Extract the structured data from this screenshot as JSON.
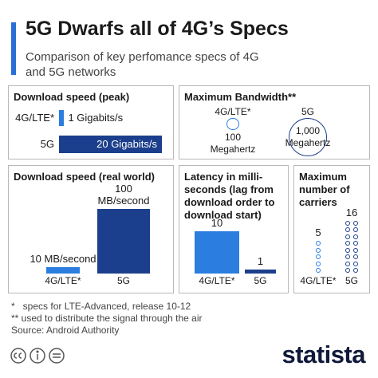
{
  "title": "5G Dwarfs all of 4G’s Specs",
  "subtitle": "Comparison of key perfomance specs of 4G and 5G networks",
  "chart_data": [
    {
      "type": "bar",
      "title": "Download speed (peak)",
      "categories": [
        "4G/LTE*",
        "5G"
      ],
      "values": [
        1,
        20
      ],
      "value_labels": [
        "1 Gigabits/s",
        "20 Gigabits/s"
      ],
      "colors": [
        "#2b7de0",
        "#1b3f8c"
      ]
    },
    {
      "type": "bubble",
      "title": "Maximum Bandwidth**",
      "categories": [
        "4G/LTE*",
        "5G"
      ],
      "values": [
        100,
        1000
      ],
      "value_labels": [
        "100 Megahertz",
        "1,000 Megahertz"
      ],
      "colors": [
        "#2b7de0",
        "#1b3f8c"
      ]
    },
    {
      "type": "column",
      "title": "Download speed (real world)",
      "categories": [
        "4G/LTE*",
        "5G"
      ],
      "values": [
        10,
        100
      ],
      "value_labels": [
        "10 MB/second",
        "100 MB/second"
      ],
      "colors": [
        "#2b7de0",
        "#1b3f8c"
      ]
    },
    {
      "type": "column",
      "title": "Latency in milli-seconds (lag from download order to download start)",
      "categories": [
        "4G/LTE*",
        "5G"
      ],
      "values": [
        10,
        1
      ],
      "colors": [
        "#2b7de0",
        "#1b3f8c"
      ]
    },
    {
      "type": "dot",
      "title": "Maximum number of carriers",
      "categories": [
        "4G/LTE*",
        "5G"
      ],
      "values": [
        5,
        16
      ],
      "colors": [
        "#2b7de0",
        "#1b3f8c"
      ]
    }
  ],
  "footnotes": [
    "*   specs for LTE-Advanced, release 10-12",
    "** used to distribute the signal through the air"
  ],
  "source": "Source: Android Authority",
  "brand": "statista"
}
